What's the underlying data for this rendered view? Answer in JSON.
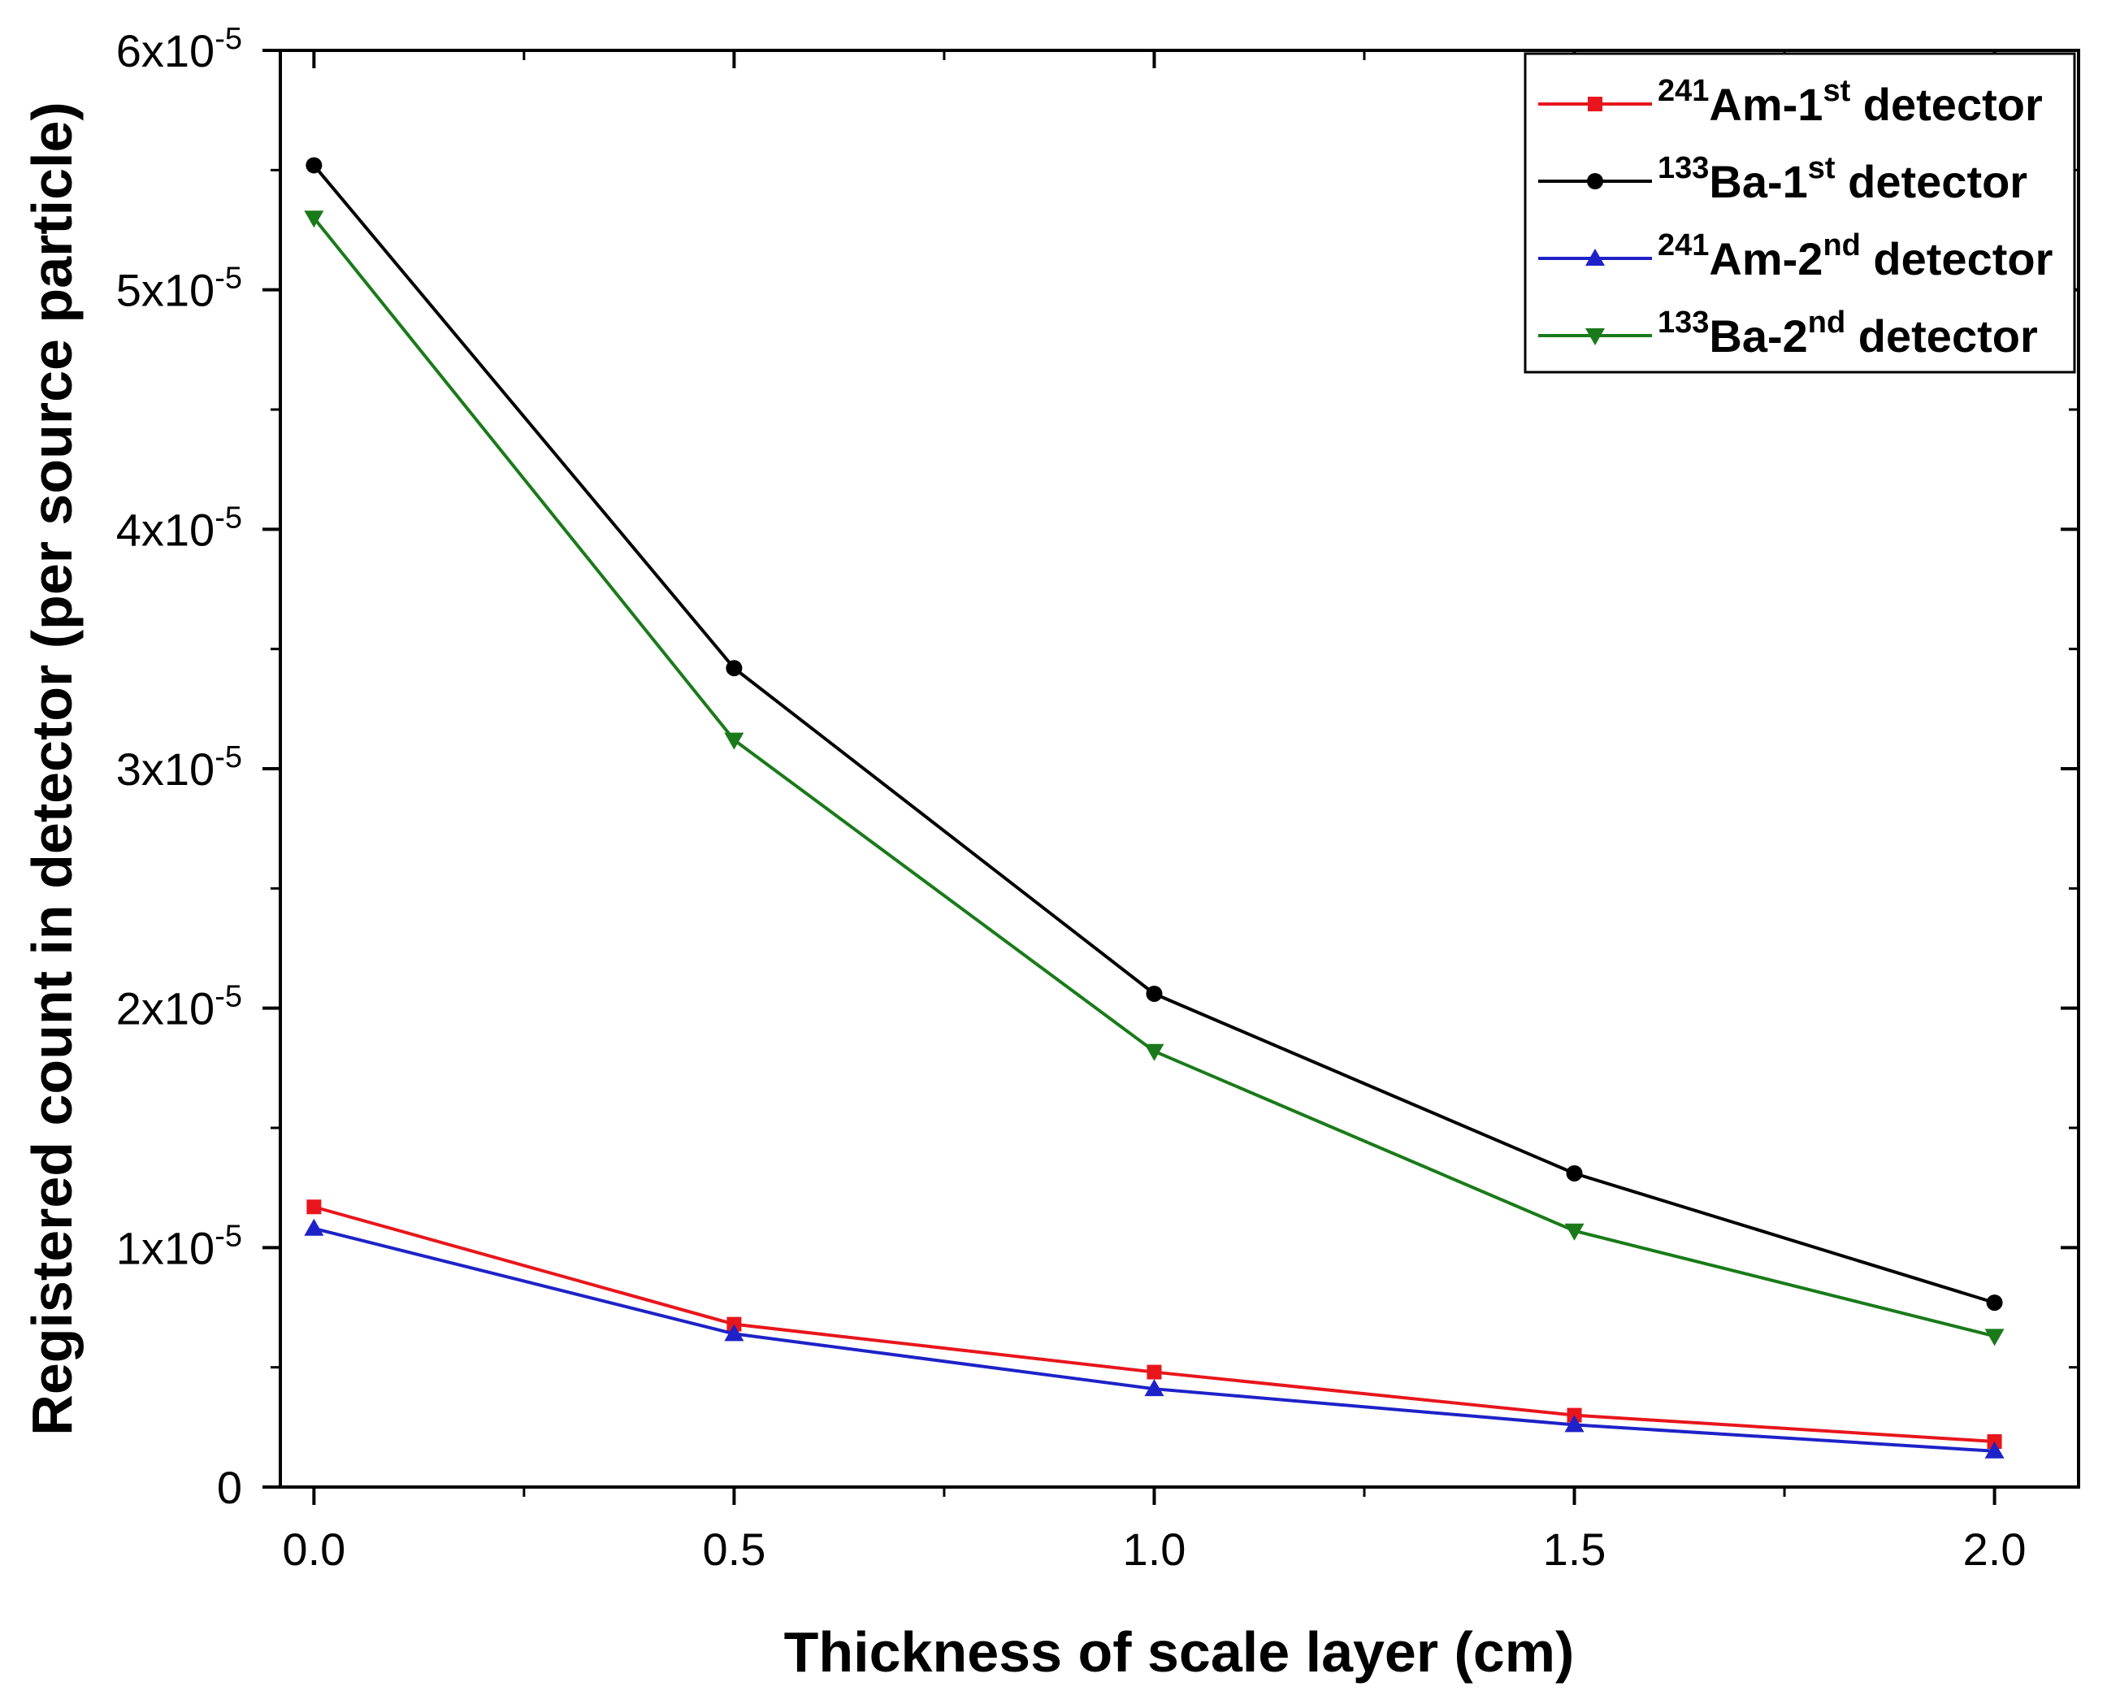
{
  "chart_data": {
    "type": "line",
    "title": "",
    "xlabel": "Thickness of scale layer (cm)",
    "ylabel": "Registered count in detector (per source particle)",
    "xlim": [
      -0.04,
      2.1
    ],
    "ylim": [
      0,
      6e-05
    ],
    "x_ticks": [
      {
        "value": 0.0,
        "label": "0.0"
      },
      {
        "value": 0.5,
        "label": "0.5"
      },
      {
        "value": 1.0,
        "label": "1.0"
      },
      {
        "value": 1.5,
        "label": "1.5"
      },
      {
        "value": 2.0,
        "label": "2.0"
      }
    ],
    "y_ticks": [
      {
        "value": 0,
        "mantissa": "0",
        "base": "",
        "exp": ""
      },
      {
        "value": 1e-05,
        "mantissa": "1",
        "base": "x10",
        "exp": "-5"
      },
      {
        "value": 2e-05,
        "mantissa": "2",
        "base": "x10",
        "exp": "-5"
      },
      {
        "value": 3e-05,
        "mantissa": "3",
        "base": "x10",
        "exp": "-5"
      },
      {
        "value": 4e-05,
        "mantissa": "4",
        "base": "x10",
        "exp": "-5"
      },
      {
        "value": 5e-05,
        "mantissa": "5",
        "base": "x10",
        "exp": "-5"
      },
      {
        "value": 6e-05,
        "mantissa": "6",
        "base": "x10",
        "exp": "-5"
      }
    ],
    "x": [
      0.0,
      0.5,
      1.0,
      1.5,
      2.0
    ],
    "legend_position": "top-right",
    "series": [
      {
        "key": "am241-1st",
        "iso_sup": "241",
        "element": "Am-1",
        "ord_sup": "st",
        "suffix": " detector",
        "color": "#e8161c",
        "marker": "square",
        "values": [
          1.17e-05,
          6.8e-06,
          4.8e-06,
          3e-06,
          1.9e-06
        ]
      },
      {
        "key": "ba133-1st",
        "iso_sup": "133",
        "element": "Ba-1",
        "ord_sup": "st",
        "suffix": " detector",
        "color": "#000000",
        "marker": "circle",
        "values": [
          5.52e-05,
          3.42e-05,
          2.06e-05,
          1.31e-05,
          7.7e-06
        ]
      },
      {
        "key": "am241-2nd",
        "iso_sup": "241",
        "element": "Am-2",
        "ord_sup": "nd",
        "suffix": " detector",
        "color": "#1e22c8",
        "marker": "triangle-up",
        "values": [
          1.08e-05,
          6.4e-06,
          4.1e-06,
          2.6e-06,
          1.5e-06
        ]
      },
      {
        "key": "ba133-2nd",
        "iso_sup": "133",
        "element": "Ba-2",
        "ord_sup": "nd",
        "suffix": " detector",
        "color": "#1a7a1a",
        "marker": "triangle-down",
        "values": [
          5.3e-05,
          3.12e-05,
          1.82e-05,
          1.07e-05,
          6.3e-06
        ]
      }
    ]
  }
}
